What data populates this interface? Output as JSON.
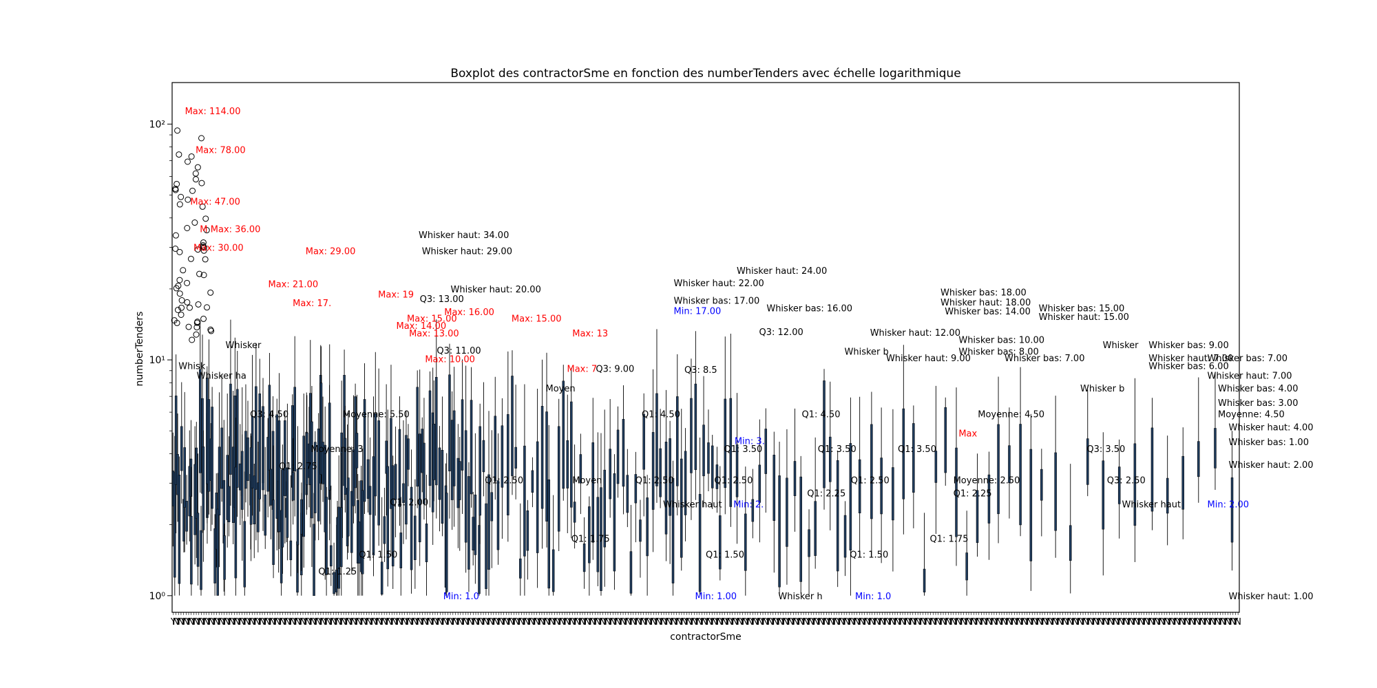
{
  "chart_data": {
    "type": "box",
    "title": "Boxplot des contractorSme en fonction des numberTenders avec échelle logarithmique",
    "xlabel": "contractorSme",
    "ylabel": "numberTenders",
    "y_scale": "log",
    "ylim": [
      0.85,
      150
    ],
    "y_ticks": [
      {
        "value": 1,
        "label": "10⁰"
      },
      {
        "value": 10,
        "label": "10¹"
      },
      {
        "value": 100,
        "label": "10²"
      }
    ],
    "x_tick_labels": [
      "Y",
      "N",
      "Y",
      "N",
      "Y",
      "N",
      "Y",
      "N",
      "Y",
      "N",
      "Y",
      "N",
      "Y",
      "N",
      "Y",
      "N"
    ],
    "grid": false,
    "colors": {
      "max": "#ff0000",
      "min": "#0000ff",
      "text": "#000000",
      "box": "#000000"
    },
    "annotations": [
      {
        "text": "Max: 114.00",
        "x": 0.012,
        "y": 114,
        "kind": "max"
      },
      {
        "text": "Max: 78.00",
        "x": 0.022,
        "y": 78,
        "kind": "max"
      },
      {
        "text": "Max: 47.00",
        "x": 0.017,
        "y": 47,
        "kind": "max"
      },
      {
        "text": "M",
        "x": 0.026,
        "y": 36,
        "kind": "max"
      },
      {
        "text": "Max: 36.00",
        "x": 0.036,
        "y": 36,
        "kind": "max"
      },
      {
        "text": "Max: 30.00",
        "x": 0.02,
        "y": 30,
        "kind": "max"
      },
      {
        "text": "Max: 29.00",
        "x": 0.125,
        "y": 29,
        "kind": "max"
      },
      {
        "text": "Max: 21.00",
        "x": 0.09,
        "y": 21,
        "kind": "max"
      },
      {
        "text": "Max: 19",
        "x": 0.193,
        "y": 19,
        "kind": "max"
      },
      {
        "text": "Max: 17.",
        "x": 0.113,
        "y": 17.5,
        "kind": "max"
      },
      {
        "text": "Max: 16.00",
        "x": 0.255,
        "y": 16,
        "kind": "max"
      },
      {
        "text": "Max: 15.00",
        "x": 0.22,
        "y": 15,
        "kind": "max"
      },
      {
        "text": "Max: 14.00",
        "x": 0.21,
        "y": 14,
        "kind": "max"
      },
      {
        "text": "Max: 13.00",
        "x": 0.222,
        "y": 13,
        "kind": "max"
      },
      {
        "text": "Max: 13",
        "x": 0.375,
        "y": 13,
        "kind": "max"
      },
      {
        "text": "Max: 15.00",
        "x": 0.318,
        "y": 15,
        "kind": "max"
      },
      {
        "text": "Max: 10.00",
        "x": 0.237,
        "y": 10.1,
        "kind": "max"
      },
      {
        "text": "Max: 7",
        "x": 0.37,
        "y": 9.2,
        "kind": "max"
      },
      {
        "text": "Max",
        "x": 0.737,
        "y": 4.9,
        "kind": "max"
      },
      {
        "text": "Whisker haut: 34.00",
        "x": 0.231,
        "y": 34,
        "kind": "text"
      },
      {
        "text": "Whisker haut: 29.00",
        "x": 0.234,
        "y": 29,
        "kind": "text"
      },
      {
        "text": "Whisker haut: 20.00",
        "x": 0.261,
        "y": 20,
        "kind": "text"
      },
      {
        "text": "Q3: 11.00",
        "x": 0.248,
        "y": 11,
        "kind": "text"
      },
      {
        "text": "Q3: 13.00",
        "x": 0.232,
        "y": 18.2,
        "kind": "text"
      },
      {
        "text": "Whisker haut: 24.00",
        "x": 0.529,
        "y": 24,
        "kind": "text"
      },
      {
        "text": "Whisker haut: 22.00",
        "x": 0.47,
        "y": 21.2,
        "kind": "text"
      },
      {
        "text": "Whisker bas: 17.00",
        "x": 0.47,
        "y": 17.9,
        "kind": "text"
      },
      {
        "text": "Min: 17.00",
        "x": 0.47,
        "y": 16.2,
        "kind": "min"
      },
      {
        "text": "Whisker bas: 16.00",
        "x": 0.557,
        "y": 16.6,
        "kind": "text"
      },
      {
        "text": "Whisker bas: 18.00",
        "x": 0.72,
        "y": 19.4,
        "kind": "text"
      },
      {
        "text": "Whisker haut: 18.00",
        "x": 0.72,
        "y": 17.6,
        "kind": "text"
      },
      {
        "text": "Whisker bas: 14.00",
        "x": 0.724,
        "y": 16.1,
        "kind": "text"
      },
      {
        "text": "Whisker bas: 15.00",
        "x": 0.812,
        "y": 16.6,
        "kind": "text"
      },
      {
        "text": "Whisker haut: 15.00",
        "x": 0.812,
        "y": 15.3,
        "kind": "text"
      },
      {
        "text": "Whisker bas: 10.00",
        "x": 0.737,
        "y": 12.2,
        "kind": "text"
      },
      {
        "text": "Whisker haut: 12.00",
        "x": 0.654,
        "y": 13.1,
        "kind": "text"
      },
      {
        "text": "Whisker bas: 9.00",
        "x": 0.915,
        "y": 11.6,
        "kind": "text"
      },
      {
        "text": "Whisker bas: 8.00",
        "x": 0.737,
        "y": 10.9,
        "kind": "text"
      },
      {
        "text": "Whisker bas: 7.00",
        "x": 0.78,
        "y": 10.2,
        "kind": "text"
      },
      {
        "text": "Whisker haut: 7.00",
        "x": 0.915,
        "y": 10.2,
        "kind": "text"
      },
      {
        "text": "Whisker bas: 7.00",
        "x": 0.97,
        "y": 10.2,
        "kind": "text"
      },
      {
        "text": "Whisker bas: 6.00",
        "x": 0.915,
        "y": 9.45,
        "kind": "text"
      },
      {
        "text": "Whisker haut: 7.00",
        "x": 0.97,
        "y": 8.6,
        "kind": "text"
      },
      {
        "text": "Whisker bas: 4.00",
        "x": 0.98,
        "y": 7.6,
        "kind": "text"
      },
      {
        "text": "Whisker bas: 3.00",
        "x": 0.98,
        "y": 6.6,
        "kind": "text"
      },
      {
        "text": "Moyenne: 4.50",
        "x": 0.98,
        "y": 5.9,
        "kind": "text"
      },
      {
        "text": "Whisker haut: 4.00",
        "x": 0.99,
        "y": 5.2,
        "kind": "text"
      },
      {
        "text": "Whisker bas: 1.00",
        "x": 0.99,
        "y": 4.5,
        "kind": "text"
      },
      {
        "text": "Whisker haut: 2.00",
        "x": 0.99,
        "y": 3.6,
        "kind": "text"
      },
      {
        "text": "Whisker haut: 1.00",
        "x": 0.99,
        "y": 1.0,
        "kind": "text"
      },
      {
        "text": "Q3: 9.00",
        "x": 0.397,
        "y": 9.2,
        "kind": "text"
      },
      {
        "text": "Q3: 8.5",
        "x": 0.48,
        "y": 9.1,
        "kind": "text"
      },
      {
        "text": "Q3: 12.00",
        "x": 0.55,
        "y": 13.2,
        "kind": "text"
      },
      {
        "text": "Q3: 4.50",
        "x": 0.073,
        "y": 5.9,
        "kind": "text"
      },
      {
        "text": "Q3: 3.50",
        "x": 0.857,
        "y": 4.2,
        "kind": "text"
      },
      {
        "text": "Q3: 2.50",
        "x": 0.876,
        "y": 3.1,
        "kind": "text"
      },
      {
        "text": "Moyenne: 5.50",
        "x": 0.16,
        "y": 5.9,
        "kind": "text"
      },
      {
        "text": "Moyenne: 3",
        "x": 0.13,
        "y": 4.2,
        "kind": "text"
      },
      {
        "text": "Moyenne: 4.50",
        "x": 0.755,
        "y": 5.9,
        "kind": "text"
      },
      {
        "text": "Moyenne: 2.50",
        "x": 0.732,
        "y": 3.1,
        "kind": "text"
      },
      {
        "text": "Q1: 4.50",
        "x": 0.44,
        "y": 5.9,
        "kind": "text"
      },
      {
        "text": "Q1: 4.50",
        "x": 0.59,
        "y": 5.9,
        "kind": "text"
      },
      {
        "text": "Q1: 3.50",
        "x": 0.517,
        "y": 4.2,
        "kind": "text"
      },
      {
        "text": "Q1: 3.50",
        "x": 0.605,
        "y": 4.2,
        "kind": "text"
      },
      {
        "text": "Q1: 3.50",
        "x": 0.68,
        "y": 4.2,
        "kind": "text"
      },
      {
        "text": "Q1: 2.50",
        "x": 0.293,
        "y": 3.1,
        "kind": "text"
      },
      {
        "text": "Q1: 2.50",
        "x": 0.434,
        "y": 3.1,
        "kind": "text"
      },
      {
        "text": "Q1: 2.50",
        "x": 0.636,
        "y": 3.1,
        "kind": "text"
      },
      {
        "text": "Q1: 2.50",
        "x": 0.508,
        "y": 3.1,
        "kind": "text"
      },
      {
        "text": "Q1: 2.75",
        "x": 0.1,
        "y": 3.55,
        "kind": "text"
      },
      {
        "text": "Q1: 2.25",
        "x": 0.595,
        "y": 2.73,
        "kind": "text"
      },
      {
        "text": "Q1: 2.25",
        "x": 0.732,
        "y": 2.73,
        "kind": "text"
      },
      {
        "text": "Q1: 2.00",
        "x": 0.204,
        "y": 2.5,
        "kind": "text"
      },
      {
        "text": "Q1: 1.75",
        "x": 0.374,
        "y": 1.75,
        "kind": "text"
      },
      {
        "text": "Q1: 1.75",
        "x": 0.71,
        "y": 1.75,
        "kind": "text"
      },
      {
        "text": "Q1: 1.50",
        "x": 0.175,
        "y": 1.5,
        "kind": "text"
      },
      {
        "text": "Q1: 1.50",
        "x": 0.5,
        "y": 1.5,
        "kind": "text"
      },
      {
        "text": "Q1: 1.50",
        "x": 0.635,
        "y": 1.5,
        "kind": "text"
      },
      {
        "text": "Q1: 1.25",
        "x": 0.137,
        "y": 1.27,
        "kind": "text"
      },
      {
        "text": "Min: 3.",
        "x": 0.527,
        "y": 4.55,
        "kind": "min"
      },
      {
        "text": "Min: 2.",
        "x": 0.526,
        "y": 2.45,
        "kind": "min"
      },
      {
        "text": "Min: 2.00",
        "x": 0.97,
        "y": 2.45,
        "kind": "min"
      },
      {
        "text": "Min: 1.00",
        "x": 0.49,
        "y": 1.0,
        "kind": "min"
      },
      {
        "text": "Min: 1.0",
        "x": 0.64,
        "y": 1.0,
        "kind": "min"
      },
      {
        "text": "Min: 1.0",
        "x": 0.254,
        "y": 1.0,
        "kind": "min"
      },
      {
        "text": "Whisker b",
        "x": 0.63,
        "y": 10.9,
        "kind": "text"
      },
      {
        "text": "Whisker haut: 9.00",
        "x": 0.669,
        "y": 10.2,
        "kind": "text"
      },
      {
        "text": "Whisker ha",
        "x": 0.023,
        "y": 8.6,
        "kind": "text"
      },
      {
        "text": "Whisker haut",
        "x": 0.46,
        "y": 2.45,
        "kind": "text"
      },
      {
        "text": "Whisker haut",
        "x": 0.89,
        "y": 2.45,
        "kind": "text"
      },
      {
        "text": "Whisker h",
        "x": 0.568,
        "y": 1.0,
        "kind": "text"
      },
      {
        "text": "Whisker b",
        "x": 0.851,
        "y": 7.6,
        "kind": "text"
      },
      {
        "text": "Whisker",
        "x": 0.872,
        "y": 11.6,
        "kind": "text"
      },
      {
        "text": "Whisker",
        "x": 0.05,
        "y": 11.6,
        "kind": "text"
      },
      {
        "text": "Whisk",
        "x": 0.006,
        "y": 9.45,
        "kind": "text"
      },
      {
        "text": "Moyen",
        "x": 0.35,
        "y": 7.6,
        "kind": "text"
      },
      {
        "text": "Moyen",
        "x": 0.375,
        "y": 3.1,
        "kind": "text"
      }
    ]
  }
}
